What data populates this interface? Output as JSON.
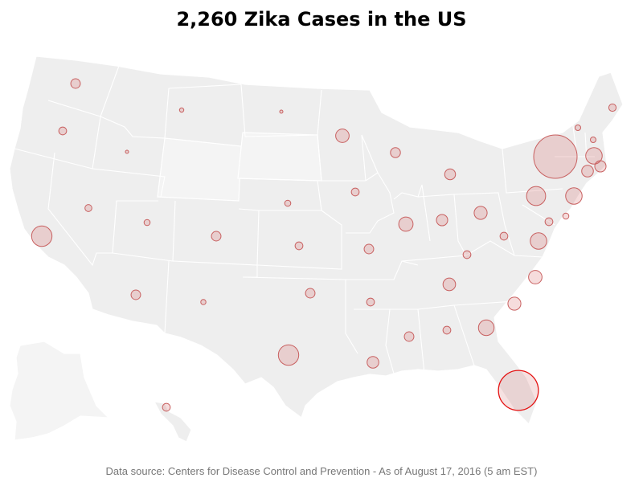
{
  "title": "2,260 Zika Cases in the US",
  "source": "Data source: Centers for Disease Control and Prevention - As of August 17, 2016 (5 am EST)",
  "colors": {
    "land": "#eeeeee",
    "border": "#ffffff",
    "bubble_fill": "#f3d9d9",
    "bubble_stroke": "#c86060",
    "highlight_stroke": "#e51010"
  },
  "total_cases": 2260,
  "bubbles": [
    {
      "state": "Washington",
      "relative_size": 0.22
    },
    {
      "state": "Oregon",
      "relative_size": 0.18
    },
    {
      "state": "California",
      "relative_size": 0.47
    },
    {
      "state": "Nevada",
      "relative_size": 0.16
    },
    {
      "state": "Idaho",
      "relative_size": 0.07
    },
    {
      "state": "Montana",
      "relative_size": 0.1
    },
    {
      "state": "Wyoming",
      "relative_size": 0.0
    },
    {
      "state": "Utah",
      "relative_size": 0.14
    },
    {
      "state": "Arizona",
      "relative_size": 0.22
    },
    {
      "state": "Colorado",
      "relative_size": 0.22
    },
    {
      "state": "New Mexico",
      "relative_size": 0.12
    },
    {
      "state": "North Dakota",
      "relative_size": 0.07
    },
    {
      "state": "South Dakota",
      "relative_size": 0.0
    },
    {
      "state": "Nebraska",
      "relative_size": 0.14
    },
    {
      "state": "Kansas",
      "relative_size": 0.18
    },
    {
      "state": "Oklahoma",
      "relative_size": 0.22
    },
    {
      "state": "Texas",
      "relative_size": 0.47
    },
    {
      "state": "Minnesota",
      "relative_size": 0.31
    },
    {
      "state": "Iowa",
      "relative_size": 0.18
    },
    {
      "state": "Missouri",
      "relative_size": 0.22
    },
    {
      "state": "Arkansas",
      "relative_size": 0.18
    },
    {
      "state": "Louisiana",
      "relative_size": 0.27
    },
    {
      "state": "Wisconsin",
      "relative_size": 0.23
    },
    {
      "state": "Illinois",
      "relative_size": 0.33
    },
    {
      "state": "Michigan",
      "relative_size": 0.25
    },
    {
      "state": "Indiana",
      "relative_size": 0.26
    },
    {
      "state": "Ohio",
      "relative_size": 0.3
    },
    {
      "state": "Kentucky",
      "relative_size": 0.18
    },
    {
      "state": "Tennessee",
      "relative_size": 0.29
    },
    {
      "state": "Mississippi",
      "relative_size": 0.22
    },
    {
      "state": "Alabama",
      "relative_size": 0.18
    },
    {
      "state": "Georgia",
      "relative_size": 0.36
    },
    {
      "state": "Florida",
      "relative_size": 0.92
    },
    {
      "state": "South Carolina",
      "relative_size": 0.3
    },
    {
      "state": "North Carolina",
      "relative_size": 0.31
    },
    {
      "state": "Virginia",
      "relative_size": 0.38
    },
    {
      "state": "West Virginia",
      "relative_size": 0.18
    },
    {
      "state": "Maryland",
      "relative_size": 0.18
    },
    {
      "state": "Delaware",
      "relative_size": 0.14
    },
    {
      "state": "New Jersey",
      "relative_size": 0.38
    },
    {
      "state": "Pennsylvania",
      "relative_size": 0.44
    },
    {
      "state": "New York",
      "relative_size": 1.0
    },
    {
      "state": "Connecticut",
      "relative_size": 0.27
    },
    {
      "state": "Rhode Island",
      "relative_size": 0.26
    },
    {
      "state": "Massachusetts",
      "relative_size": 0.38
    },
    {
      "state": "New Hampshire",
      "relative_size": 0.13
    },
    {
      "state": "Vermont",
      "relative_size": 0.13
    },
    {
      "state": "Maine",
      "relative_size": 0.17
    },
    {
      "state": "Hawaii",
      "relative_size": 0.18
    },
    {
      "state": "Alaska",
      "relative_size": 0.0
    }
  ]
}
